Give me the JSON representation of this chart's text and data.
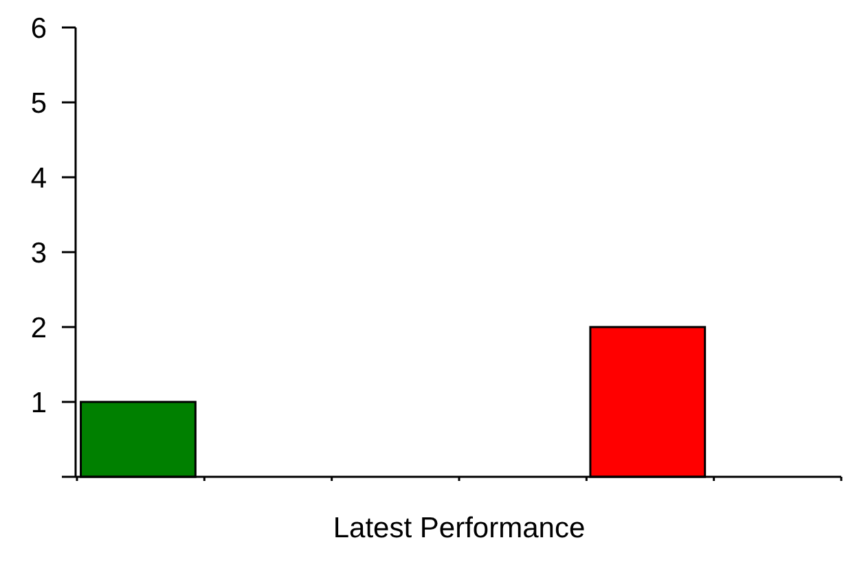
{
  "chart_data": {
    "type": "bar",
    "xlabel": "Latest Performance",
    "categories": [
      null,
      null,
      null,
      null,
      null,
      null
    ],
    "values": [
      1,
      null,
      null,
      null,
      2,
      null
    ],
    "colors": [
      "#008000",
      null,
      null,
      null,
      "#ff0000",
      null
    ],
    "ylim": [
      0,
      6
    ],
    "yticks": [
      {
        "value": 0,
        "label": null
      },
      1,
      2,
      3,
      4,
      5,
      6
    ],
    "tick_labels": "y"
  }
}
